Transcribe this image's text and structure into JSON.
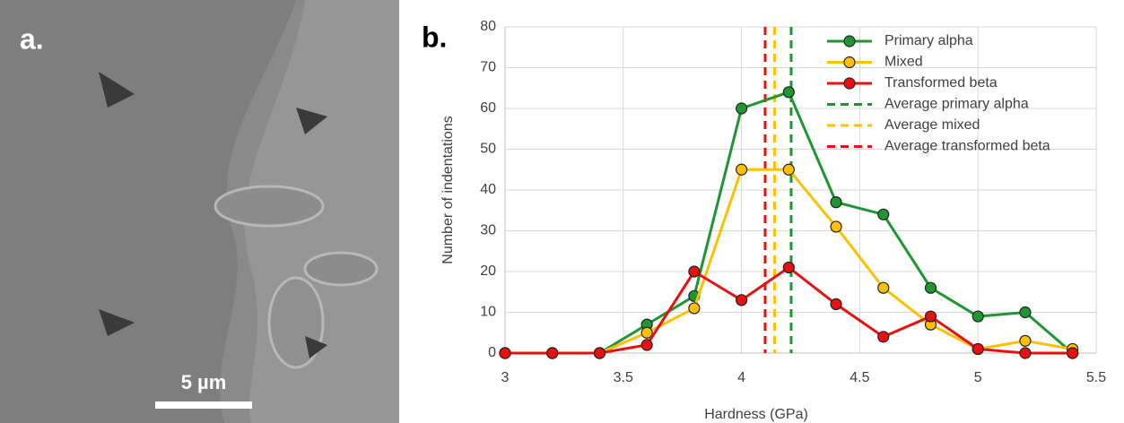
{
  "image": {
    "panel_label": "a.",
    "scale_bar": "5 µm"
  },
  "chart_data": {
    "type": "line",
    "panel_label": "b.",
    "x_label": "Hardness (GPa)",
    "y_label": "Number of indentations",
    "x": [
      3,
      3.2,
      3.4,
      3.6,
      3.8,
      4,
      4.2,
      4.4,
      4.6,
      4.8,
      5,
      5.2,
      5.4
    ],
    "series": [
      {
        "name": "Primary alpha",
        "color": "#1e9632",
        "values": [
          0,
          0,
          0,
          7,
          14,
          60,
          64,
          37,
          34,
          16,
          9,
          10,
          0
        ]
      },
      {
        "name": "Mixed",
        "color": "#ffc000",
        "values": [
          0,
          0,
          0,
          5,
          11,
          45,
          45,
          31,
          16,
          7,
          1,
          3,
          1
        ]
      },
      {
        "name": "Transformed beta",
        "color": "#e81010",
        "values": [
          0,
          0,
          0,
          2,
          20,
          13,
          21,
          12,
          4,
          9,
          1,
          0,
          0
        ]
      }
    ],
    "averages": [
      {
        "name": "Average primary alpha",
        "color": "#1e9632",
        "value": 4.21
      },
      {
        "name": "Average mixed",
        "color": "#ffc000",
        "value": 4.14
      },
      {
        "name": "Average transformed beta",
        "color": "#e81010",
        "value": 4.1
      }
    ],
    "xlim": [
      3,
      5.5
    ],
    "xticks": [
      3,
      3.5,
      4,
      4.5,
      5,
      5.5
    ],
    "ylim": [
      0,
      80
    ],
    "yticks": [
      0,
      10,
      20,
      30,
      40,
      50,
      60,
      70,
      80
    ],
    "grid": true
  }
}
